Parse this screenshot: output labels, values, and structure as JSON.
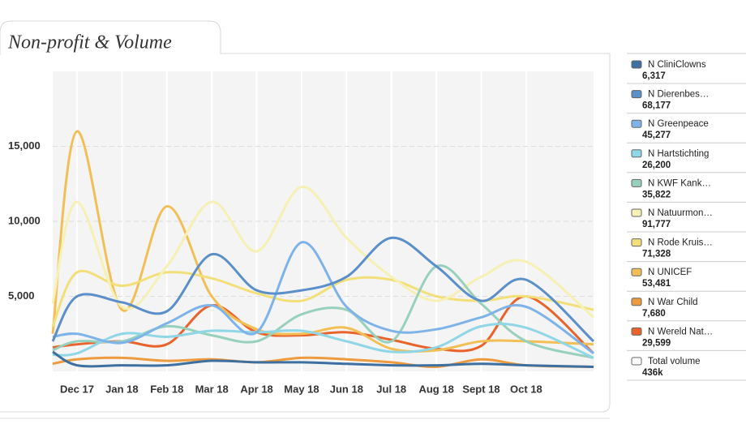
{
  "chart_data": {
    "type": "line",
    "title": "Non-profit & Volume",
    "categories": [
      null,
      "Dec 17",
      "Jan 18",
      "Feb 18",
      "Mar 18",
      "Apr 18",
      "May 18",
      "Jun 18",
      "Jul 18",
      "Aug 18",
      "Sept 18",
      "Oct 18",
      null
    ],
    "ylim": [
      0,
      20000
    ],
    "yticks": [
      {
        "value": 5000,
        "label": "5,000"
      },
      {
        "value": 10000,
        "label": "10,000"
      },
      {
        "value": 15000,
        "label": "15,000"
      }
    ],
    "grid": true,
    "series": [
      {
        "name": "N CliniClowns",
        "total": "6,317",
        "color": "#3d6fa0",
        "values": [
          1300,
          400,
          400,
          400,
          700,
          600,
          600,
          500,
          400,
          400,
          500,
          400,
          300
        ]
      },
      {
        "name": "N Dierenbes…",
        "total": "68,177",
        "color": "#5b8fc9",
        "values": [
          2000,
          5000,
          4600,
          4000,
          7800,
          5400,
          5400,
          6300,
          8900,
          7000,
          4700,
          6100,
          2000
        ]
      },
      {
        "name": "N Greenpeace",
        "total": "45,277",
        "color": "#7eb3ea",
        "values": [
          2300,
          2500,
          1900,
          3200,
          4400,
          2600,
          8600,
          4300,
          2700,
          2800,
          3600,
          4300,
          1200
        ]
      },
      {
        "name": "N Hartstichting",
        "total": "26,200",
        "color": "#8fd6e6",
        "values": [
          1100,
          1200,
          2500,
          2300,
          2700,
          2600,
          2700,
          2000,
          1300,
          1600,
          3000,
          2900,
          900
        ]
      },
      {
        "name": "N KWF Kank…",
        "total": "35,822",
        "color": "#98d0be",
        "values": [
          1400,
          2000,
          2000,
          3000,
          2400,
          2000,
          3800,
          4100,
          2000,
          7000,
          4500,
          2000,
          900
        ]
      },
      {
        "name": "N Natuurmon…",
        "total": "91,777",
        "color": "#f7f0b4",
        "values": [
          4500,
          11300,
          4300,
          7000,
          11300,
          8000,
          12300,
          8900,
          6300,
          4700,
          6300,
          7300,
          3600
        ]
      },
      {
        "name": "N Rode Kruis…",
        "total": "71,328",
        "color": "#f3df79",
        "values": [
          3000,
          6600,
          5700,
          6600,
          6200,
          5200,
          4700,
          6100,
          6100,
          5000,
          4700,
          5000,
          4100
        ]
      },
      {
        "name": "N UNICEF",
        "total": "53,481",
        "color": "#f2bf57",
        "values": [
          2500,
          16000,
          4100,
          11000,
          5000,
          2800,
          2500,
          2900,
          1500,
          1400,
          2000,
          2000,
          1800
        ]
      },
      {
        "name": "N War Child",
        "total": "7,680",
        "color": "#ee9a3e",
        "values": [
          500,
          800,
          900,
          700,
          800,
          600,
          900,
          800,
          600,
          300,
          800,
          400,
          300
        ]
      },
      {
        "name": "N Wereld Nat…",
        "total": "29,599",
        "color": "#e8642c",
        "values": [
          1600,
          1800,
          2000,
          1800,
          4400,
          2600,
          2400,
          2600,
          2100,
          1500,
          1700,
          5000,
          1200
        ]
      }
    ],
    "total_volume": {
      "name": "Total volume",
      "value": "436k"
    }
  }
}
